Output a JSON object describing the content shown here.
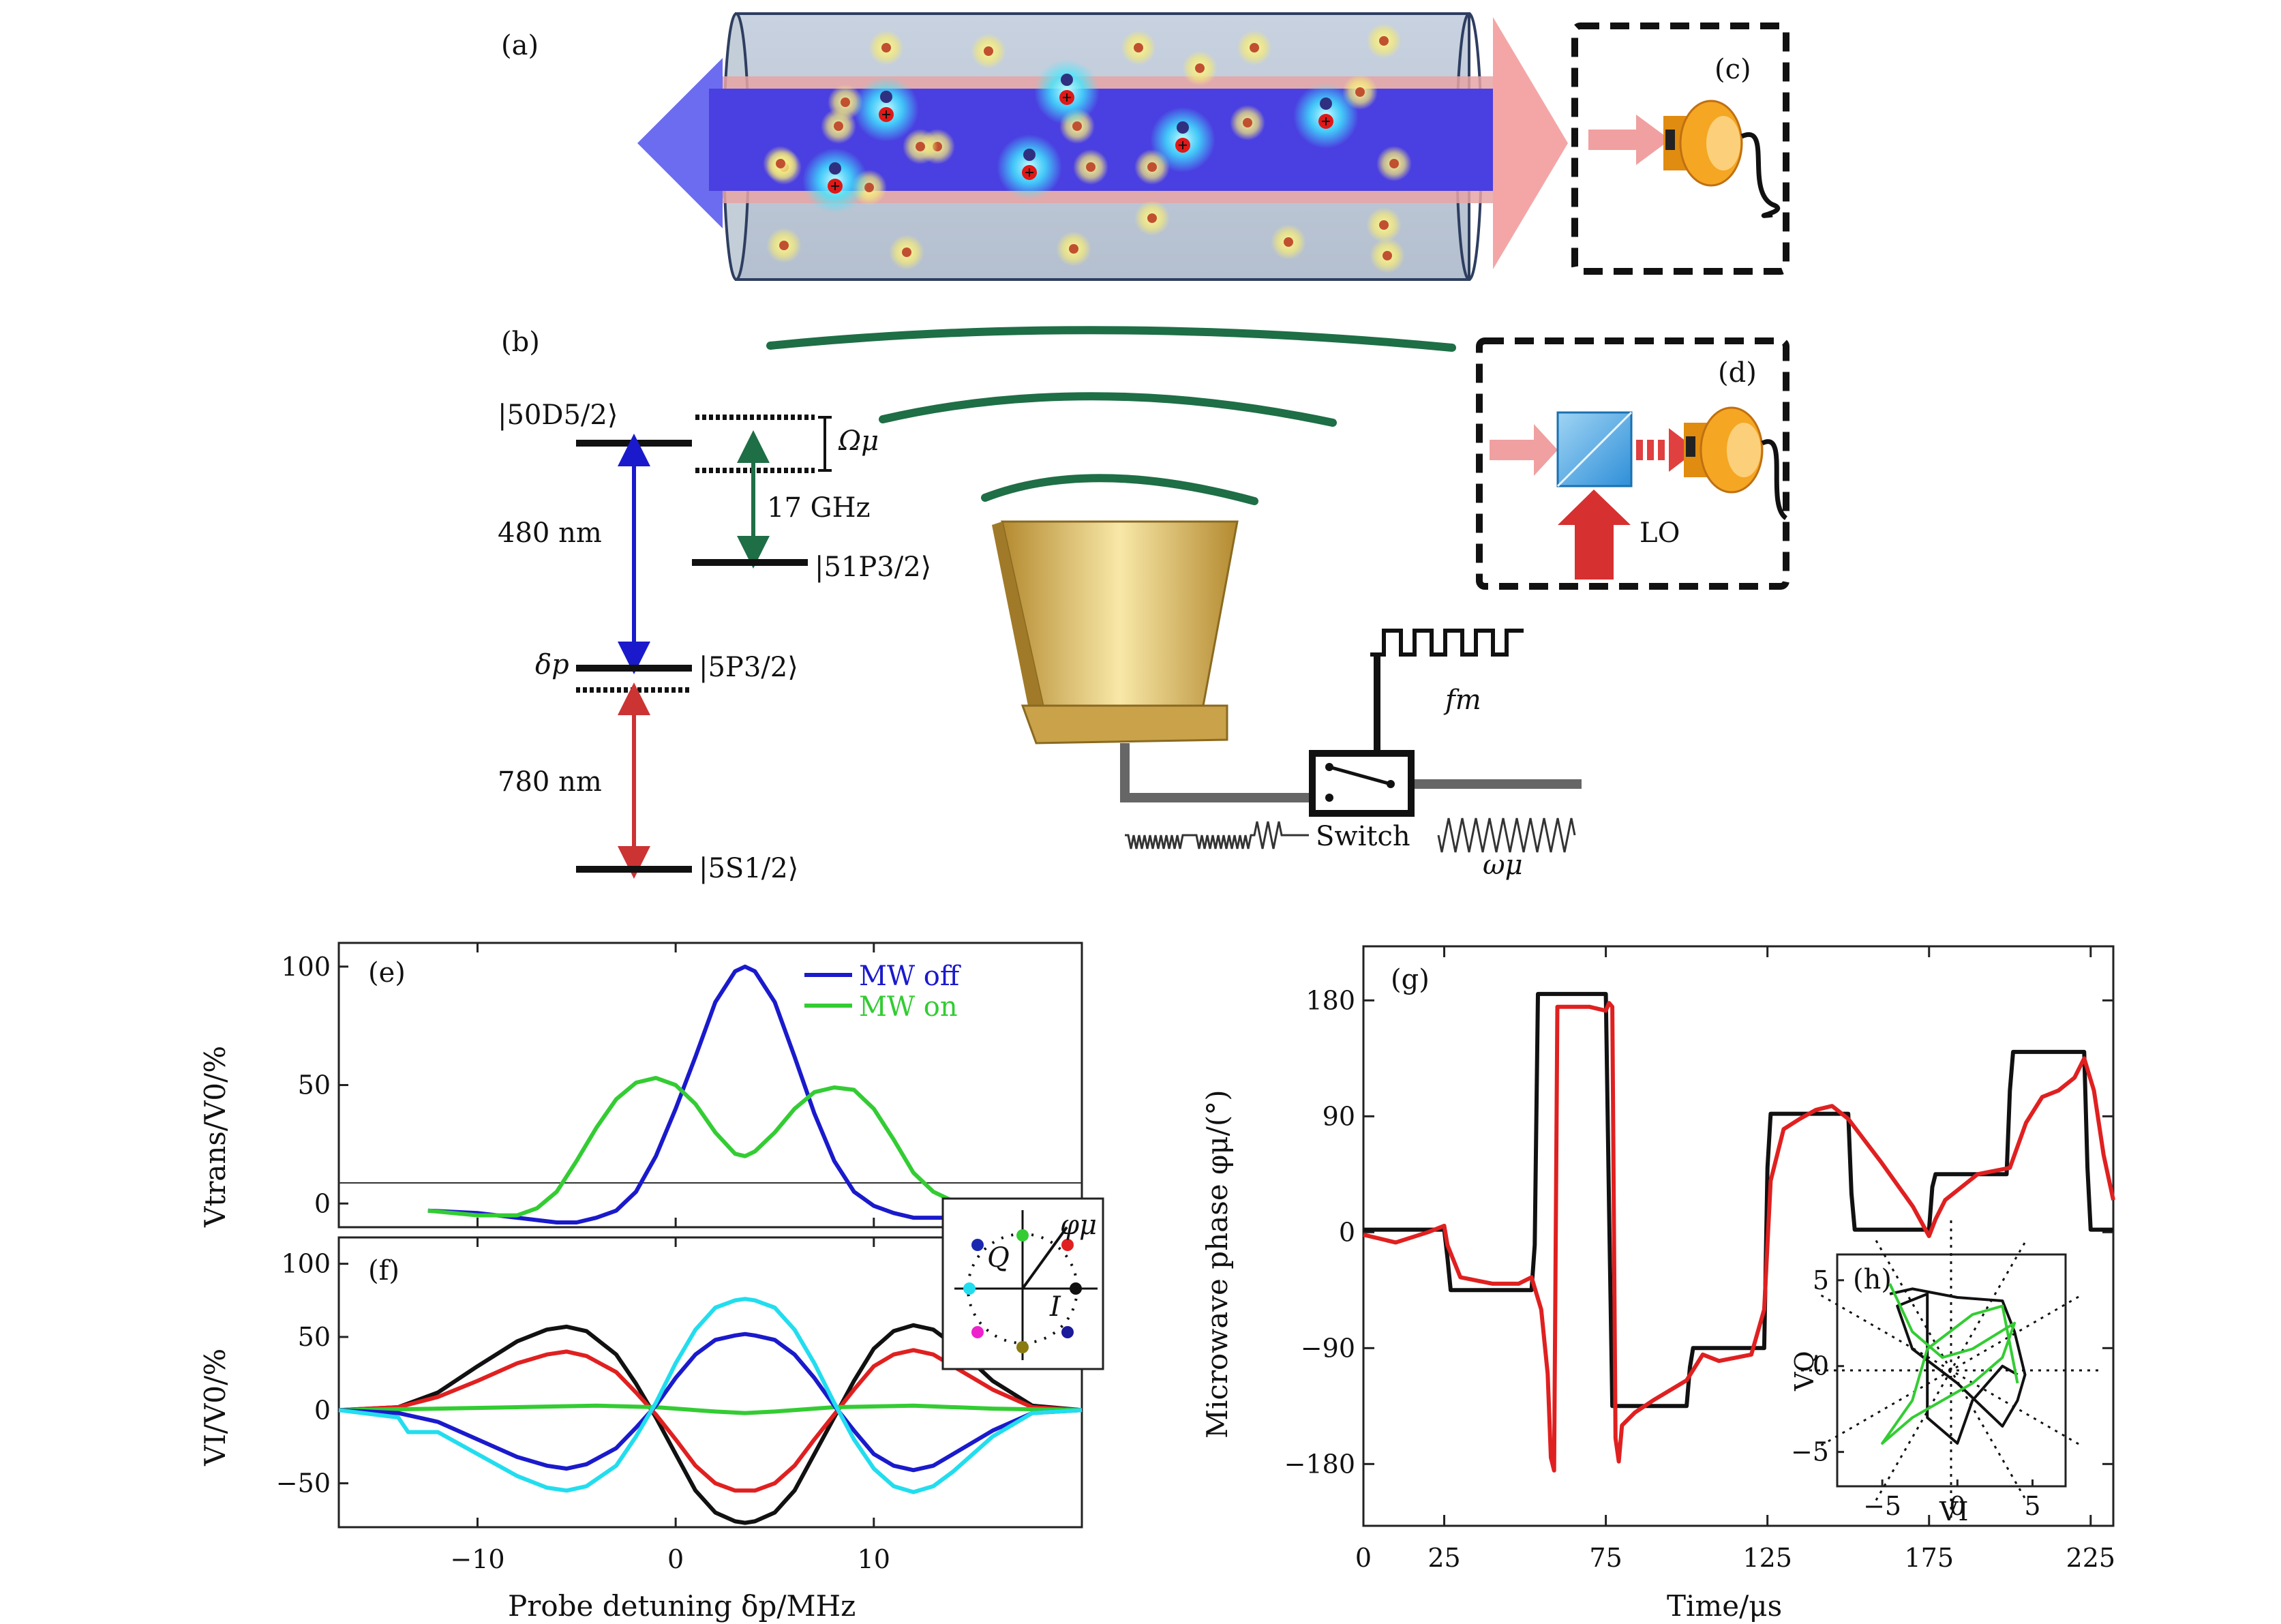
{
  "panels": {
    "a": "(a)",
    "b": "(b)",
    "c": "(c)",
    "d": "(d)",
    "e": "(e)",
    "f": "(f)",
    "g": "(g)",
    "h": "(h)"
  },
  "diagram": {
    "level_50D": "|50D5/2⟩",
    "level_51P": "|51P3/2⟩",
    "level_5P": "|5P3/2⟩",
    "level_5S": "|5S1/2⟩",
    "omega_mu": "Ωμ",
    "freq_17": "17 GHz",
    "nm_480": "480 nm",
    "nm_780": "780 nm",
    "delta_p": "δp",
    "lo": "LO",
    "f_m": "fm",
    "switch": "Switch",
    "omega_mu_rf": "ωμ"
  },
  "colors": {
    "blue_laser": "#4a3fe0",
    "red_laser": "#f0a0a0",
    "mw_green": "#1e6e46",
    "horn": "#c9a24a",
    "detector": "#f5a623",
    "mw_off": "#1a1acc",
    "mw_on": "#33cc33",
    "black": "#111111",
    "red": "#e02020",
    "cyan": "#22ddee"
  },
  "chart_data": [
    {
      "type": "line",
      "panel": "(e)",
      "xlim": [
        -17,
        20.5
      ],
      "ylim": [
        -10,
        110
      ],
      "yticks": [
        0,
        50,
        100
      ],
      "ylabel": "Vtrans/V0/%",
      "series": [
        {
          "name": "MW off",
          "color": "#1a1acc",
          "x": [
            -12.5,
            -10,
            -8,
            -6,
            -5,
            -4,
            -3,
            -2,
            -1,
            0,
            1,
            2,
            3,
            3.5,
            4,
            5,
            6,
            7,
            8,
            9,
            10,
            11,
            12,
            13,
            14,
            16,
            18
          ],
          "y": [
            -3,
            -4,
            -6,
            -8,
            -8,
            -6,
            -3,
            5,
            20,
            40,
            62,
            85,
            98,
            100,
            98,
            85,
            62,
            38,
            18,
            5,
            -1,
            -4,
            -6,
            -6,
            -6,
            -5,
            -4
          ]
        },
        {
          "name": "MW on",
          "color": "#33cc33",
          "x": [
            -12.5,
            -10,
            -8,
            -7,
            -6,
            -5,
            -4,
            -3,
            -2,
            -1,
            0,
            1,
            2,
            3,
            3.5,
            4,
            5,
            6,
            7,
            8,
            9,
            10,
            11,
            12,
            13,
            14,
            16,
            18.5
          ],
          "y": [
            -3,
            -5,
            -5,
            -2,
            5,
            18,
            32,
            44,
            51,
            53,
            50,
            42,
            30,
            21,
            20,
            22,
            30,
            40,
            47,
            49,
            48,
            40,
            27,
            13,
            5,
            1,
            -3,
            -4
          ]
        }
      ]
    },
    {
      "type": "line",
      "panel": "(f)",
      "xlim": [
        -17,
        20.5
      ],
      "ylim": [
        -80,
        118
      ],
      "yticks": [
        -50,
        0,
        50,
        100
      ],
      "xticks": [
        -10,
        0,
        10
      ],
      "xlabel": "Probe detuning δp/MHz",
      "ylabel": "VI/V0/%",
      "series": [
        {
          "color": "#111111",
          "x": [
            -17,
            -14,
            -12,
            -10,
            -8,
            -6.5,
            -5.5,
            -4.5,
            -3,
            -2,
            -1,
            0,
            1,
            2,
            3,
            3.5,
            4,
            5,
            6,
            7,
            8,
            9,
            10,
            11,
            12,
            13,
            14,
            16,
            18,
            20.5
          ],
          "y": [
            0,
            2,
            12,
            30,
            47,
            55,
            57,
            54,
            38,
            18,
            -5,
            -30,
            -55,
            -70,
            -76,
            -77,
            -76,
            -70,
            -55,
            -30,
            -5,
            20,
            42,
            54,
            58,
            55,
            45,
            20,
            3,
            0
          ]
        },
        {
          "color": "#e02020",
          "x": [
            -17,
            -14,
            -12,
            -10,
            -8,
            -6.5,
            -5.5,
            -4.5,
            -3,
            -2,
            -1,
            0,
            1,
            2,
            3,
            3.5,
            4,
            5,
            6,
            7,
            8,
            9,
            10,
            11,
            12,
            13,
            14,
            16,
            18,
            20.5
          ],
          "y": [
            0,
            2,
            9,
            20,
            32,
            38,
            40,
            37,
            26,
            12,
            -3,
            -20,
            -38,
            -50,
            -55,
            -55,
            -55,
            -50,
            -38,
            -20,
            -3,
            14,
            30,
            38,
            41,
            38,
            30,
            14,
            2,
            0
          ]
        },
        {
          "color": "#33cc33",
          "x": [
            -17,
            -12,
            -8,
            -4,
            -1,
            2,
            3.5,
            5,
            8,
            12,
            16,
            20.5
          ],
          "y": [
            0,
            1,
            2,
            3,
            2,
            -1,
            -2,
            -1,
            2,
            3,
            1,
            0
          ]
        },
        {
          "color": "#1a1acc",
          "x": [
            -17,
            -14,
            -12,
            -10,
            -8,
            -6.5,
            -5.5,
            -4.5,
            -3,
            -2,
            -1,
            0,
            1,
            2,
            3,
            3.5,
            4,
            5,
            6,
            7,
            8,
            9,
            10,
            11,
            12,
            13,
            14,
            16,
            18,
            20.5
          ],
          "y": [
            0,
            -2,
            -8,
            -20,
            -32,
            -38,
            -40,
            -37,
            -26,
            -12,
            3,
            22,
            38,
            48,
            51,
            52,
            51,
            48,
            38,
            22,
            3,
            -14,
            -30,
            -38,
            -41,
            -38,
            -30,
            -14,
            -2,
            0
          ]
        },
        {
          "color": "#22ddee",
          "x": [
            -17,
            -14,
            -13.5,
            -12,
            -10,
            -8,
            -6.5,
            -5.5,
            -4.5,
            -3,
            -2,
            -1,
            0,
            1,
            2,
            3,
            3.5,
            4,
            5,
            6,
            7,
            8,
            9,
            10,
            11,
            12,
            13,
            14,
            16,
            18,
            20.5
          ],
          "y": [
            0,
            -5,
            -15,
            -15,
            -30,
            -45,
            -53,
            -55,
            -52,
            -38,
            -18,
            5,
            32,
            55,
            70,
            75,
            76,
            75,
            70,
            55,
            32,
            5,
            -20,
            -40,
            -52,
            -56,
            -52,
            -42,
            -18,
            -2,
            0
          ]
        }
      ]
    },
    {
      "type": "line",
      "panel": "(g)",
      "xlim": [
        0,
        232
      ],
      "ylim": [
        -228,
        222
      ],
      "yticks": [
        -180,
        -90,
        0,
        90,
        180
      ],
      "xticks": [
        0,
        25,
        75,
        125,
        175,
        225
      ],
      "xlabel": "Time/μs",
      "ylabel": "Microwave phase φμ/(°)",
      "series": [
        {
          "color": "#111111",
          "x": [
            0,
            25,
            26,
            27,
            52,
            53,
            54,
            75,
            76,
            77,
            100,
            101,
            102,
            124,
            125,
            126,
            150,
            151,
            152,
            175,
            176,
            177,
            199,
            200,
            201,
            223,
            224,
            225,
            232
          ],
          "y": [
            2,
            2,
            -20,
            -45,
            -45,
            -10,
            185,
            185,
            20,
            -135,
            -135,
            -105,
            -90,
            -90,
            50,
            92,
            92,
            30,
            2,
            2,
            35,
            45,
            45,
            110,
            140,
            140,
            50,
            2,
            2
          ]
        },
        {
          "color": "#e02020",
          "x": [
            0,
            10,
            20,
            25,
            26,
            30,
            40,
            48,
            52,
            55,
            57,
            58,
            59,
            60,
            61,
            70,
            75,
            76,
            77,
            78,
            79,
            80,
            84,
            90,
            100,
            105,
            110,
            120,
            124,
            126,
            130,
            135,
            140,
            145,
            150,
            160,
            170,
            175,
            177,
            180,
            185,
            190,
            200,
            205,
            210,
            215,
            220,
            223,
            226,
            229,
            232
          ],
          "y": [
            -2,
            -8,
            0,
            5,
            -10,
            -35,
            -40,
            -40,
            -35,
            -60,
            -110,
            -175,
            -185,
            175,
            175,
            175,
            172,
            178,
            175,
            -160,
            -178,
            -150,
            -140,
            -130,
            -115,
            -95,
            -100,
            -95,
            -60,
            40,
            80,
            88,
            95,
            98,
            88,
            55,
            20,
            -3,
            10,
            25,
            35,
            45,
            50,
            85,
            105,
            110,
            120,
            135,
            110,
            60,
            25
          ]
        }
      ]
    },
    {
      "type": "line",
      "panel": "(h)",
      "xlim": [
        -8,
        7.2
      ],
      "ylim": [
        -7,
        6.5
      ],
      "xticks": [
        -5,
        0,
        5
      ],
      "yticks": [
        -5,
        0,
        5
      ],
      "xlabel": "VI",
      "ylabel": "VQ",
      "series": [
        {
          "color": "#111111",
          "x": [
            -4.5,
            -3,
            0,
            3,
            3.8,
            4.5,
            4,
            3,
            0,
            -3,
            -4,
            -2,
            -2,
            0,
            1,
            3,
            4
          ],
          "y": [
            4.2,
            4.5,
            4.0,
            3.8,
            2,
            -0.5,
            -2,
            -3.5,
            -1,
            1,
            3.5,
            4.2,
            -3,
            -4.5,
            -2,
            0,
            -0.5
          ]
        },
        {
          "color": "#33cc33",
          "x": [
            -4.5,
            -3,
            -1,
            1,
            3.8,
            3,
            1,
            -1,
            -3,
            -5,
            -3,
            -2,
            1,
            3,
            4
          ],
          "y": [
            4.8,
            2,
            0.5,
            1,
            2.5,
            0.5,
            -1,
            -2,
            -3,
            -4.5,
            -2,
            1,
            3,
            3.5,
            -1
          ]
        }
      ]
    }
  ]
}
